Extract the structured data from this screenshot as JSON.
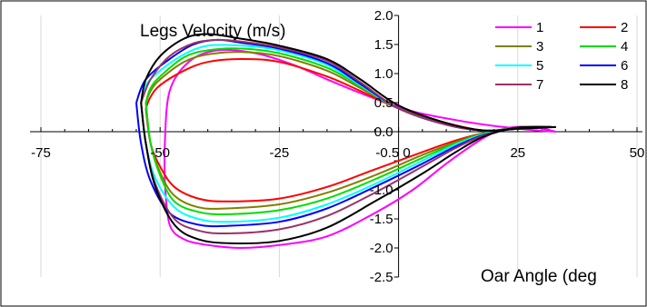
{
  "chart_data": {
    "type": "line",
    "ylabel": "Legs Velocity (m/s)",
    "xlabel": "Oar Angle (deg",
    "xlim": [
      -75,
      50
    ],
    "ylim": [
      -2.5,
      2.0
    ],
    "x_ticks": [
      -75,
      -50,
      -25,
      0,
      25,
      50
    ],
    "x_tick_labels": [
      "-75",
      "-50",
      "-25",
      "-0.5 0",
      "25",
      "50"
    ],
    "y_ticks": [
      2.0,
      1.5,
      1.0,
      0.5,
      0.0,
      -0.5,
      -1.0,
      -1.5,
      -2.0,
      -2.5
    ],
    "y_tick_labels": [
      "2.0",
      "1.5",
      "1.0",
      "0.5",
      "0.0",
      "-0.5",
      "-1.0",
      "-1.5",
      "-2.0",
      "-2.5"
    ],
    "grid": {
      "vertical": true,
      "horizontal": false
    },
    "legend_position": "top-right",
    "series": [
      {
        "name": "1",
        "color": "#ff00ff",
        "drive": [
          [
            -49,
            -0.9
          ],
          [
            -48,
            -1.6
          ],
          [
            -45,
            -1.85
          ],
          [
            -40,
            -1.95
          ],
          [
            -33,
            -2.0
          ],
          [
            -25,
            -1.95
          ],
          [
            -15,
            -1.8
          ],
          [
            -5,
            -1.4
          ],
          [
            3,
            -1.0
          ],
          [
            10,
            -0.55
          ],
          [
            17,
            -0.15
          ],
          [
            22,
            0.05
          ],
          [
            28,
            0.08
          ],
          [
            33,
            0.0
          ]
        ],
        "recovery": [
          [
            33,
            0.0
          ],
          [
            28,
            0.03
          ],
          [
            20,
            0.1
          ],
          [
            12,
            0.2
          ],
          [
            3,
            0.35
          ],
          [
            -6,
            0.6
          ],
          [
            -15,
            0.9
          ],
          [
            -22,
            1.15
          ],
          [
            -30,
            1.35
          ],
          [
            -38,
            1.4
          ],
          [
            -44,
            1.2
          ],
          [
            -48,
            0.7
          ],
          [
            -49,
            -0.2
          ],
          [
            -49,
            -0.9
          ]
        ]
      },
      {
        "name": "2",
        "color": "#ff0000",
        "drive": [
          [
            -53,
            0.4
          ],
          [
            -52,
            -0.2
          ],
          [
            -50,
            -0.6
          ],
          [
            -47,
            -0.95
          ],
          [
            -42,
            -1.15
          ],
          [
            -36,
            -1.2
          ],
          [
            -25,
            -1.15
          ],
          [
            -15,
            -0.95
          ],
          [
            -5,
            -0.65
          ],
          [
            5,
            -0.35
          ],
          [
            12,
            -0.15
          ],
          [
            18,
            -0.02
          ],
          [
            25,
            0.07
          ],
          [
            32,
            0.08
          ]
        ],
        "recovery": [
          [
            32,
            0.08
          ],
          [
            25,
            0.05
          ],
          [
            18,
            0.02
          ],
          [
            10,
            0.15
          ],
          [
            0,
            0.4
          ],
          [
            -8,
            0.7
          ],
          [
            -15,
            0.95
          ],
          [
            -25,
            1.2
          ],
          [
            -33,
            1.25
          ],
          [
            -40,
            1.2
          ],
          [
            -45,
            1.05
          ],
          [
            -50,
            0.8
          ],
          [
            -52,
            0.6
          ],
          [
            -53,
            0.4
          ]
        ]
      },
      {
        "name": "3",
        "color": "#808000",
        "drive": [
          [
            -53,
            0.5
          ],
          [
            -52,
            -0.2
          ],
          [
            -50,
            -0.7
          ],
          [
            -47,
            -1.1
          ],
          [
            -42,
            -1.3
          ],
          [
            -36,
            -1.32
          ],
          [
            -25,
            -1.25
          ],
          [
            -15,
            -1.05
          ],
          [
            -5,
            -0.75
          ],
          [
            5,
            -0.4
          ],
          [
            12,
            -0.18
          ],
          [
            18,
            -0.02
          ],
          [
            25,
            0.07
          ],
          [
            32,
            0.08
          ]
        ],
        "recovery": [
          [
            32,
            0.08
          ],
          [
            25,
            0.05
          ],
          [
            18,
            0.02
          ],
          [
            10,
            0.12
          ],
          [
            0,
            0.4
          ],
          [
            -8,
            0.75
          ],
          [
            -15,
            1.05
          ],
          [
            -25,
            1.3
          ],
          [
            -33,
            1.37
          ],
          [
            -40,
            1.33
          ],
          [
            -45,
            1.2
          ],
          [
            -50,
            0.9
          ],
          [
            -52,
            0.7
          ],
          [
            -53,
            0.5
          ]
        ]
      },
      {
        "name": "4",
        "color": "#00dd00",
        "drive": [
          [
            -53,
            0.5
          ],
          [
            -52,
            -0.2
          ],
          [
            -50,
            -0.75
          ],
          [
            -47,
            -1.2
          ],
          [
            -42,
            -1.38
          ],
          [
            -36,
            -1.42
          ],
          [
            -25,
            -1.35
          ],
          [
            -15,
            -1.15
          ],
          [
            -5,
            -0.82
          ],
          [
            5,
            -0.45
          ],
          [
            12,
            -0.2
          ],
          [
            18,
            -0.03
          ],
          [
            25,
            0.07
          ],
          [
            32,
            0.08
          ]
        ],
        "recovery": [
          [
            32,
            0.08
          ],
          [
            25,
            0.05
          ],
          [
            18,
            0.02
          ],
          [
            10,
            0.12
          ],
          [
            0,
            0.4
          ],
          [
            -8,
            0.78
          ],
          [
            -15,
            1.1
          ],
          [
            -25,
            1.35
          ],
          [
            -33,
            1.43
          ],
          [
            -40,
            1.4
          ],
          [
            -45,
            1.28
          ],
          [
            -50,
            0.95
          ],
          [
            -52,
            0.75
          ],
          [
            -53,
            0.5
          ]
        ]
      },
      {
        "name": "5",
        "color": "#00ffff",
        "drive": [
          [
            -54,
            0.5
          ],
          [
            -53,
            -0.2
          ],
          [
            -51,
            -0.8
          ],
          [
            -47,
            -1.3
          ],
          [
            -42,
            -1.5
          ],
          [
            -36,
            -1.55
          ],
          [
            -25,
            -1.48
          ],
          [
            -15,
            -1.25
          ],
          [
            -5,
            -0.9
          ],
          [
            5,
            -0.5
          ],
          [
            12,
            -0.22
          ],
          [
            18,
            -0.04
          ],
          [
            25,
            0.07
          ],
          [
            32,
            0.08
          ]
        ],
        "recovery": [
          [
            32,
            0.08
          ],
          [
            25,
            0.05
          ],
          [
            18,
            0.02
          ],
          [
            10,
            0.12
          ],
          [
            0,
            0.4
          ],
          [
            -8,
            0.8
          ],
          [
            -15,
            1.15
          ],
          [
            -25,
            1.4
          ],
          [
            -33,
            1.48
          ],
          [
            -40,
            1.48
          ],
          [
            -45,
            1.33
          ],
          [
            -50,
            1.05
          ],
          [
            -53,
            0.8
          ],
          [
            -54,
            0.5
          ]
        ]
      },
      {
        "name": "6",
        "color": "#0000ff",
        "drive": [
          [
            -55,
            0.5
          ],
          [
            -54,
            -0.2
          ],
          [
            -52,
            -0.85
          ],
          [
            -48,
            -1.4
          ],
          [
            -42,
            -1.6
          ],
          [
            -36,
            -1.62
          ],
          [
            -25,
            -1.55
          ],
          [
            -15,
            -1.32
          ],
          [
            -5,
            -0.95
          ],
          [
            5,
            -0.55
          ],
          [
            12,
            -0.25
          ],
          [
            18,
            -0.05
          ],
          [
            25,
            0.07
          ],
          [
            32,
            0.08
          ]
        ],
        "recovery": [
          [
            32,
            0.08
          ],
          [
            25,
            0.05
          ],
          [
            18,
            0.02
          ],
          [
            10,
            0.12
          ],
          [
            0,
            0.4
          ],
          [
            -8,
            0.82
          ],
          [
            -15,
            1.18
          ],
          [
            -25,
            1.43
          ],
          [
            -33,
            1.53
          ],
          [
            -38,
            1.58
          ],
          [
            -43,
            1.5
          ],
          [
            -48,
            1.25
          ],
          [
            -53,
            0.9
          ],
          [
            -55,
            0.5
          ]
        ]
      },
      {
        "name": "7",
        "color": "#993366",
        "drive": [
          [
            -54,
            0.5
          ],
          [
            -53,
            -0.2
          ],
          [
            -51,
            -0.9
          ],
          [
            -47,
            -1.5
          ],
          [
            -42,
            -1.7
          ],
          [
            -36,
            -1.75
          ],
          [
            -25,
            -1.68
          ],
          [
            -15,
            -1.45
          ],
          [
            -5,
            -1.05
          ],
          [
            5,
            -0.6
          ],
          [
            12,
            -0.28
          ],
          [
            18,
            -0.06
          ],
          [
            25,
            0.07
          ],
          [
            32,
            0.08
          ]
        ],
        "recovery": [
          [
            32,
            0.08
          ],
          [
            25,
            0.05
          ],
          [
            18,
            0.02
          ],
          [
            10,
            0.12
          ],
          [
            0,
            0.4
          ],
          [
            -8,
            0.85
          ],
          [
            -15,
            1.22
          ],
          [
            -25,
            1.45
          ],
          [
            -33,
            1.55
          ],
          [
            -38,
            1.58
          ],
          [
            -43,
            1.52
          ],
          [
            -48,
            1.3
          ],
          [
            -52,
            0.9
          ],
          [
            -54,
            0.5
          ]
        ]
      },
      {
        "name": "8",
        "color": "#000000",
        "drive": [
          [
            -54,
            0.5
          ],
          [
            -53,
            -0.2
          ],
          [
            -51,
            -0.95
          ],
          [
            -47,
            -1.6
          ],
          [
            -42,
            -1.85
          ],
          [
            -35,
            -1.92
          ],
          [
            -25,
            -1.88
          ],
          [
            -15,
            -1.65
          ],
          [
            -5,
            -1.2
          ],
          [
            5,
            -0.72
          ],
          [
            12,
            -0.35
          ],
          [
            18,
            -0.08
          ],
          [
            25,
            0.07
          ],
          [
            33,
            0.08
          ]
        ],
        "recovery": [
          [
            33,
            0.08
          ],
          [
            25,
            0.05
          ],
          [
            18,
            0.02
          ],
          [
            10,
            0.15
          ],
          [
            0,
            0.45
          ],
          [
            -8,
            0.9
          ],
          [
            -15,
            1.25
          ],
          [
            -25,
            1.48
          ],
          [
            -33,
            1.6
          ],
          [
            -40,
            1.68
          ],
          [
            -45,
            1.6
          ],
          [
            -50,
            1.3
          ],
          [
            -53,
            0.9
          ],
          [
            -54,
            0.5
          ]
        ]
      }
    ]
  }
}
